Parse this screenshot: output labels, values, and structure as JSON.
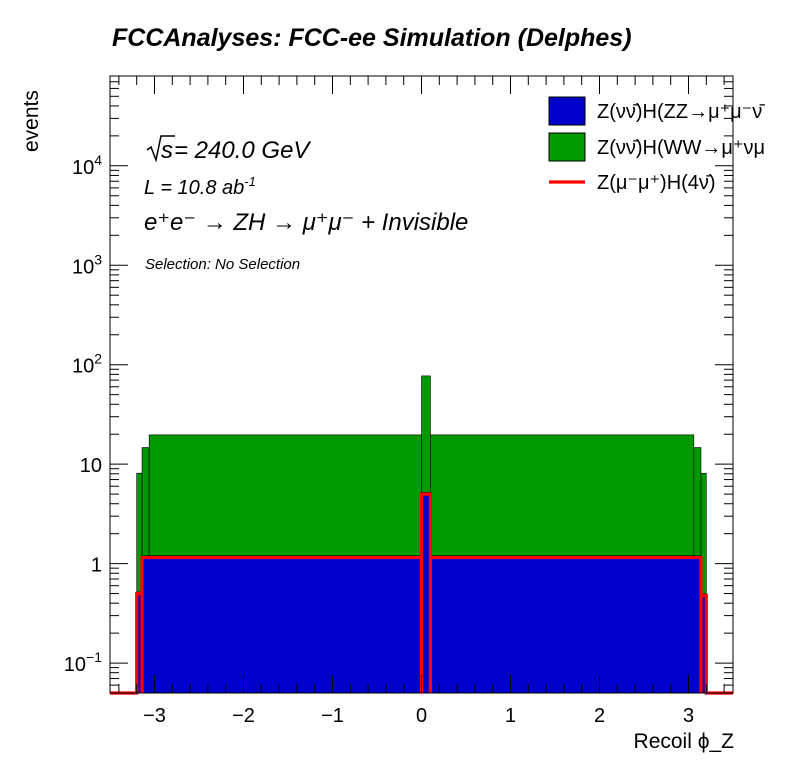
{
  "chart_data": {
    "type": "bar",
    "stacked": true,
    "title": "FCCAnalyses: FCC-ee Simulation (Delphes)",
    "xlabel": "Recoil ϕ_Z",
    "ylabel": "events",
    "y_scale": "log",
    "xlim": [
      -3.5,
      3.5
    ],
    "ylim": [
      0.05,
      80000
    ],
    "x_ticks": [
      -3,
      -2,
      -1,
      0,
      1,
      2,
      3
    ],
    "y_ticks": [
      {
        "value": 0.1,
        "label": "10",
        "exp": "−1"
      },
      {
        "value": 1,
        "label": "1",
        "exp": ""
      },
      {
        "value": 10,
        "label": "10",
        "exp": ""
      },
      {
        "value": 100,
        "label": "10",
        "exp": "2"
      },
      {
        "value": 1000,
        "label": "10",
        "exp": "3"
      },
      {
        "value": 10000,
        "label": "10",
        "exp": "4"
      }
    ],
    "legend_position": "top-right",
    "annotations": {
      "energy_root": "s",
      "energy_rest": " = 240.0 GeV",
      "lumi_base": "L = 10.8 ab",
      "lumi_exp": "-1",
      "process": "e⁺e⁻ → ZH → μ⁺μ⁻ + Invisible",
      "selection": "Selection: No Selection"
    },
    "series": [
      {
        "name": "Z(νν̄)H(ZZ→μ⁺μ⁻ν̄",
        "style": "fill",
        "color": "#0000cc",
        "bins": [
          {
            "x0": -3.2,
            "x1": -3.14,
            "y": 0.52
          },
          {
            "x0": -3.14,
            "x1": 0.0,
            "y": 1.2
          },
          {
            "x0": 0.0,
            "x1": 0.1,
            "y": 5.2
          },
          {
            "x0": 0.1,
            "x1": 3.14,
            "y": 1.2
          },
          {
            "x0": 3.14,
            "x1": 3.2,
            "y": 0.5
          }
        ]
      },
      {
        "name": "Z(νν̄)H(WW→μ⁺νμ",
        "style": "fill",
        "color": "#009900",
        "bins": [
          {
            "x0": -3.2,
            "x1": -3.14,
            "y": 7.6
          },
          {
            "x0": -3.14,
            "x1": -3.06,
            "y": 13.5
          },
          {
            "x0": -3.06,
            "x1": 0.0,
            "y": 18.5
          },
          {
            "x0": 0.0,
            "x1": 0.1,
            "y": 72
          },
          {
            "x0": 0.1,
            "x1": 3.06,
            "y": 18.5
          },
          {
            "x0": 3.06,
            "x1": 3.14,
            "y": 13.5
          },
          {
            "x0": 3.14,
            "x1": 3.2,
            "y": 7.6
          }
        ]
      },
      {
        "name": "Z(μ⁻μ⁺)H(4ν̄)",
        "style": "line",
        "color": "#ff0000",
        "bins": [
          {
            "x0": -3.2,
            "x1": -3.14,
            "y": 0.5
          },
          {
            "x0": -3.14,
            "x1": 0.0,
            "y": 1.15
          },
          {
            "x0": 0.0,
            "x1": 0.1,
            "y": 5.0
          },
          {
            "x0": 0.1,
            "x1": 3.14,
            "y": 1.15
          },
          {
            "x0": 3.14,
            "x1": 3.2,
            "y": 0.48
          }
        ]
      }
    ]
  }
}
